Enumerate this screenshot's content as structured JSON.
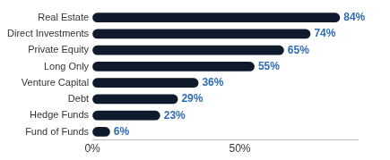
{
  "chart_data": {
    "type": "bar",
    "orientation": "horizontal",
    "categories": [
      "Real Estate",
      "Direct Investments",
      "Private Equity",
      "Long Only",
      "Venture Capital",
      "Debt",
      "Hedge Funds",
      "Fund of Funds"
    ],
    "values": [
      84,
      74,
      65,
      55,
      36,
      29,
      23,
      6
    ],
    "value_labels": [
      "84%",
      "74%",
      "65%",
      "55%",
      "36%",
      "29%",
      "23%",
      "6%"
    ],
    "data_labels": true,
    "color": "#0f1b2d",
    "xlim": [
      0,
      90
    ],
    "xticks": [
      {
        "value": 0,
        "label": "0%"
      },
      {
        "value": 50,
        "label": "50%"
      }
    ],
    "grid": false
  }
}
